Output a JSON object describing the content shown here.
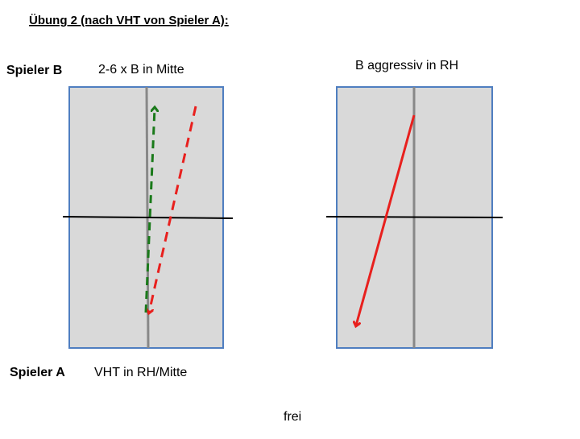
{
  "title": "Übung 2 (nach VHT von Spieler A):",
  "player_b": "Spieler B",
  "player_a": "Spieler A",
  "left_top_label": "2-6 x B in Mitte",
  "left_bottom_label": "VHT in RH/Mitte",
  "right_top_label": "B aggressiv in RH",
  "footer": "frei"
}
